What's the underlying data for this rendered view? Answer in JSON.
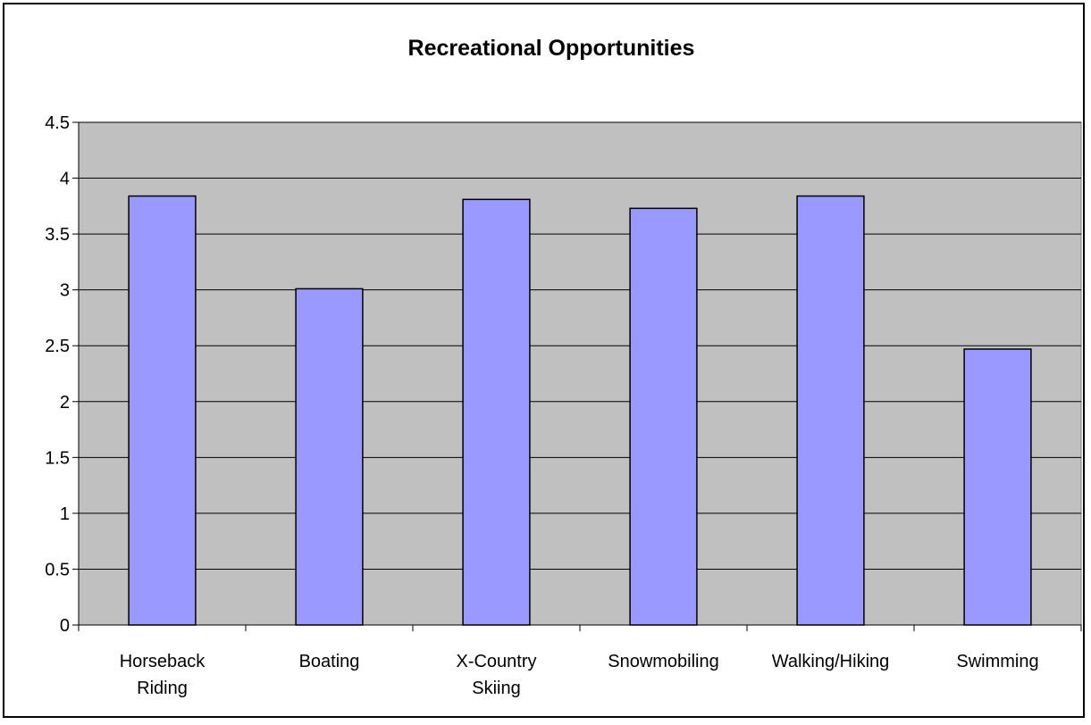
{
  "chart_data": {
    "type": "bar",
    "title": "Recreational Opportunities",
    "xlabel": "",
    "ylabel": "",
    "categories": [
      "Horseback Riding",
      "Boating",
      "X-Country Skiing",
      "Snowmobiling",
      "Walking/Hiking",
      "Swimming"
    ],
    "category_lines": [
      [
        "Horseback",
        "Riding"
      ],
      [
        "Boating"
      ],
      [
        "X-Country",
        "Skiing"
      ],
      [
        "Snowmobiling"
      ],
      [
        "Walking/Hiking"
      ],
      [
        "Swimming"
      ]
    ],
    "values": [
      3.84,
      3.01,
      3.81,
      3.73,
      3.84,
      2.47
    ],
    "ylim": [
      0,
      4.5
    ],
    "yticks": [
      "0",
      "0.5",
      "1",
      "1.5",
      "2",
      "2.5",
      "3",
      "3.5",
      "4",
      "4.5"
    ],
    "grid": true,
    "legend": "none",
    "colors": {
      "plot_background": "#c0c0c0",
      "bar_fill": "#9999ff",
      "bar_stroke": "#000000",
      "gridline": "#000000"
    }
  }
}
